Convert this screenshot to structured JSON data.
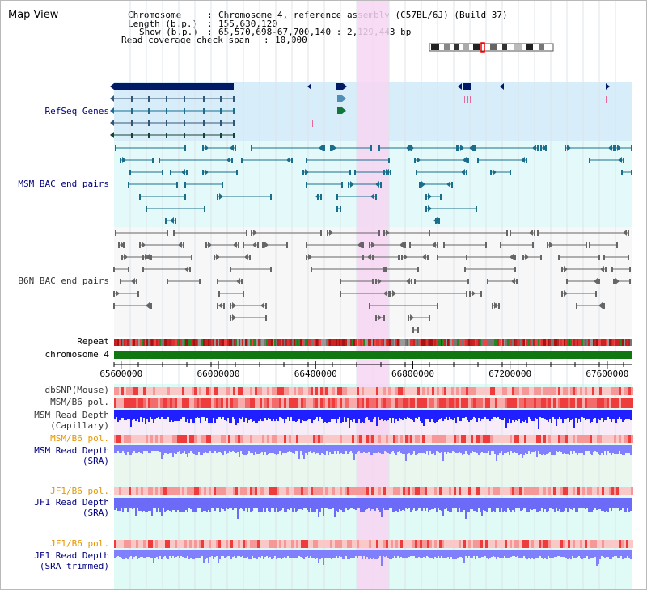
{
  "title": "Map View",
  "info": {
    "chromosome_label": "Chromosome",
    "chromosome_value": "Chromosome 4, reference assembly (C57BL/6J) (Build 37)",
    "length_label": "Length (b.p.)",
    "length_value": "155,630,120",
    "show_label": "Show (b.p.)",
    "show_value": "65,570,698-67,700,140 : 2,129,443 bp",
    "coverage_label": "Read coverage check span",
    "coverage_value": "10,000"
  },
  "tracks": {
    "refseq": "RefSeq Genes",
    "msm_bac": "MSM BAC end pairs",
    "b6n_bac": "B6N BAC end pairs",
    "repeat": "Repeat",
    "chromosome": "chromosome 4",
    "dbsnp": "dbSNP(Mouse)",
    "msm_pol1": "MSM/B6 pol.",
    "msm_depth_cap_1": "MSM Read Depth",
    "msm_depth_cap_2": "(Capillary)",
    "msm_pol2": "MSM/B6 pol.",
    "msm_depth_sra_1": "MSM Read Depth",
    "msm_depth_sra_2": "(SRA)",
    "jf1_pol1": "JF1/B6 pol.",
    "jf1_depth_sra_1": "JF1 Read Depth",
    "jf1_depth_sra_2": "(SRA)",
    "jf1_pol2": "JF1/B6 pol.",
    "jf1_depth_trim_1": "JF1 Read Depth",
    "jf1_depth_trim_2": "(SRA trimmed)"
  },
  "axis": {
    "ticks": [
      "65600000",
      "66000000",
      "66400000",
      "66800000",
      "67200000",
      "67600000"
    ],
    "tick_values": [
      65600000,
      66000000,
      66400000,
      66800000,
      67200000,
      67600000
    ],
    "start": 65570698,
    "end": 67700140
  },
  "highlight": {
    "start": 66570000,
    "end": 66700000
  },
  "colors": {
    "refseq_bg": "#d7eefa",
    "msm_bg": "#e4fafa",
    "b6n_bg": "#f7f7f7",
    "highlight": "#f7d5f2",
    "navy": "#001a66",
    "teal": "#1a6e8c",
    "gray": "#666666",
    "chrom_green": "#117711",
    "depth_blue": "#1f1fff",
    "depth_light": "#8080ff"
  }
}
